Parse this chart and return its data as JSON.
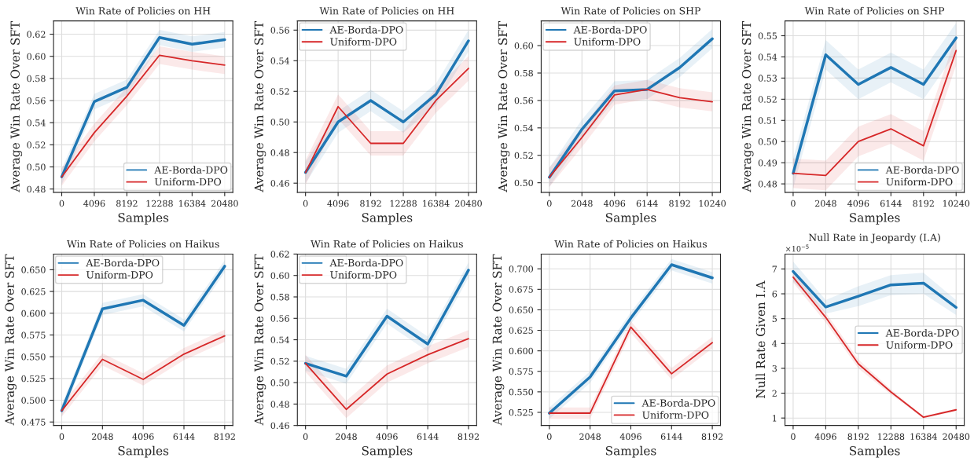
{
  "chart_data": [
    {
      "type": "line",
      "title": "Win Rate of Policies on HH",
      "xlabel": "Samples",
      "ylabel": "Average Win Rate Over SFT",
      "x": [
        0,
        4096,
        8192,
        12288,
        16384,
        20480
      ],
      "xlim": [
        -1024,
        21504
      ],
      "xticks": [
        0,
        4096,
        8192,
        12288,
        16384,
        20480
      ],
      "ylim": [
        0.477,
        0.632
      ],
      "yticks": [
        0.48,
        {
          "value": 0.5,
          "label": "0.50"
        },
        0.52,
        0.54,
        0.56,
        0.58,
        {
          "value": 0.6,
          "label": "0.60"
        },
        0.62
      ],
      "grid": true,
      "legend": "bottom right",
      "series": [
        {
          "name": "AE-Borda-DPO",
          "color": "#1f77b4",
          "values": [
            0.491,
            0.559,
            0.572,
            0.617,
            0.611,
            0.615
          ],
          "lower": [
            0.484,
            0.552,
            0.565,
            0.61,
            0.604,
            0.608
          ],
          "upper": [
            0.498,
            0.566,
            0.579,
            0.624,
            0.618,
            0.622
          ]
        },
        {
          "name": "Uniform-DPO",
          "color": "#d62728",
          "values": [
            0.491,
            0.531,
            0.564,
            0.601,
            0.596,
            0.592
          ],
          "lower": [
            0.483,
            0.523,
            0.556,
            0.593,
            0.588,
            0.584
          ],
          "upper": [
            0.499,
            0.539,
            0.572,
            0.609,
            0.604,
            0.6
          ]
        }
      ]
    },
    {
      "type": "line",
      "title": "Win Rate of Policies on HH",
      "xlabel": "Samples",
      "ylabel": "Average Win Rate Over SFT",
      "x": [
        0,
        4096,
        8192,
        12288,
        16384,
        20480
      ],
      "xlim": [
        -1024,
        21504
      ],
      "xticks": [
        0,
        4096,
        8192,
        12288,
        16384,
        20480
      ],
      "ylim": [
        0.454,
        0.566
      ],
      "yticks": [
        0.46,
        0.48,
        {
          "value": 0.5,
          "label": "0.50"
        },
        0.52,
        0.54,
        0.56
      ],
      "grid": true,
      "legend": "top left",
      "series": [
        {
          "name": "AE-Borda-DPO",
          "color": "#1f77b4",
          "values": [
            0.467,
            0.5,
            0.514,
            0.5,
            0.518,
            0.553
          ],
          "lower": [
            0.46,
            0.493,
            0.507,
            0.493,
            0.511,
            0.546
          ],
          "upper": [
            0.474,
            0.507,
            0.521,
            0.507,
            0.525,
            0.56
          ]
        },
        {
          "name": "Uniform-DPO",
          "color": "#d62728",
          "values": [
            0.467,
            0.51,
            0.486,
            0.486,
            0.514,
            0.535
          ],
          "lower": [
            0.459,
            0.502,
            0.478,
            0.478,
            0.506,
            0.527
          ],
          "upper": [
            0.475,
            0.518,
            0.494,
            0.494,
            0.522,
            0.543
          ]
        }
      ]
    },
    {
      "type": "line",
      "title": "Win Rate of Policies on SHP",
      "xlabel": "Samples",
      "ylabel": "Average Win Rate Over SFT",
      "x": [
        0,
        2048,
        4096,
        6144,
        8192,
        10240
      ],
      "xlim": [
        -512,
        10752
      ],
      "xticks": [
        0,
        2048,
        4096,
        6144,
        8192,
        10240
      ],
      "ylim": [
        0.493,
        0.618
      ],
      "yticks": [
        {
          "value": 0.5,
          "label": "0.50"
        },
        0.52,
        0.54,
        0.56,
        0.58,
        {
          "value": 0.6,
          "label": "0.60"
        }
      ],
      "grid": true,
      "legend": "top left",
      "series": [
        {
          "name": "AE-Borda-DPO",
          "color": "#1f77b4",
          "values": [
            0.504,
            0.539,
            0.567,
            0.568,
            0.584,
            0.605
          ],
          "lower": [
            0.497,
            0.532,
            0.56,
            0.561,
            0.577,
            0.598
          ],
          "upper": [
            0.511,
            0.546,
            0.574,
            0.575,
            0.591,
            0.612
          ]
        },
        {
          "name": "Uniform-DPO",
          "color": "#d62728",
          "values": [
            0.504,
            0.533,
            0.564,
            0.568,
            0.562,
            0.559
          ],
          "lower": [
            0.497,
            0.526,
            0.557,
            0.561,
            0.555,
            0.552
          ],
          "upper": [
            0.511,
            0.54,
            0.571,
            0.575,
            0.569,
            0.566
          ]
        }
      ]
    },
    {
      "type": "line",
      "title": "Win Rate of Policies on SHP",
      "xlabel": "Samples",
      "ylabel": "Average Win Rate Over SFT",
      "x": [
        0,
        2048,
        4096,
        6144,
        8192,
        10240
      ],
      "xlim": [
        -512,
        10752
      ],
      "xticks": [
        0,
        2048,
        4096,
        6144,
        8192,
        10240
      ],
      "ylim": [
        0.476,
        0.557
      ],
      "yticks": [
        0.48,
        0.49,
        {
          "value": 0.5,
          "label": "0.50"
        },
        0.51,
        0.52,
        0.53,
        0.54,
        0.55
      ],
      "grid": true,
      "legend": "bottom right",
      "series": [
        {
          "name": "AE-Borda-DPO",
          "color": "#1f77b4",
          "values": [
            0.485,
            0.541,
            0.527,
            0.535,
            0.527,
            0.549
          ],
          "lower": [
            0.478,
            0.534,
            0.52,
            0.528,
            0.52,
            0.542
          ],
          "upper": [
            0.492,
            0.548,
            0.534,
            0.542,
            0.534,
            0.556
          ]
        },
        {
          "name": "Uniform-DPO",
          "color": "#d62728",
          "values": [
            0.485,
            0.484,
            0.5,
            0.506,
            0.498,
            0.543
          ],
          "lower": [
            0.478,
            0.477,
            0.493,
            0.499,
            0.491,
            0.536
          ],
          "upper": [
            0.492,
            0.491,
            0.507,
            0.513,
            0.505,
            0.55
          ]
        }
      ]
    },
    {
      "type": "line",
      "title": "Win Rate of Policies on Haikus",
      "xlabel": "Samples",
      "ylabel": "Average Win Rate Over SFT",
      "x": [
        0,
        2048,
        4096,
        6144,
        8192
      ],
      "xlim": [
        -409.6,
        8601.6
      ],
      "xticks": [
        0,
        2048,
        4096,
        6144,
        8192
      ],
      "ylim": [
        0.471,
        0.668
      ],
      "yticks": [
        0.475,
        {
          "value": 0.5,
          "label": "0.500"
        },
        0.525,
        {
          "value": 0.55,
          "label": "0.550"
        },
        0.575,
        {
          "value": 0.6,
          "label": "0.600"
        },
        0.625,
        {
          "value": 0.65,
          "label": "0.650"
        }
      ],
      "grid": true,
      "legend": "top left",
      "series": [
        {
          "name": "AE-Borda-DPO",
          "color": "#1f77b4",
          "values": [
            0.488,
            0.605,
            0.615,
            0.586,
            0.654
          ],
          "lower": [
            0.481,
            0.598,
            0.608,
            0.579,
            0.647
          ],
          "upper": [
            0.495,
            0.612,
            0.622,
            0.593,
            0.661
          ]
        },
        {
          "name": "Uniform-DPO",
          "color": "#d62728",
          "values": [
            0.488,
            0.547,
            0.524,
            0.553,
            0.574
          ],
          "lower": [
            0.481,
            0.54,
            0.517,
            0.546,
            0.567
          ],
          "upper": [
            0.495,
            0.554,
            0.531,
            0.56,
            0.581
          ]
        }
      ]
    },
    {
      "type": "line",
      "title": "Win Rate of Policies on Haikus",
      "xlabel": "Samples",
      "ylabel": "Average Win Rate Over SFT",
      "x": [
        0,
        2048,
        4096,
        6144,
        8192
      ],
      "xlim": [
        -409.6,
        8601.6
      ],
      "xticks": [
        0,
        2048,
        4096,
        6144,
        8192
      ],
      "ylim": [
        0.46,
        0.62
      ],
      "yticks": [
        0.46,
        0.48,
        {
          "value": 0.5,
          "label": "0.50"
        },
        0.52,
        0.54,
        0.56,
        0.58,
        {
          "value": 0.6,
          "label": "0.60"
        },
        0.62
      ],
      "grid": true,
      "legend": "top left",
      "series": [
        {
          "name": "AE-Borda-DPO",
          "color": "#1f77b4",
          "values": [
            0.518,
            0.506,
            0.562,
            0.536,
            0.605
          ],
          "lower": [
            0.511,
            0.499,
            0.555,
            0.529,
            0.598
          ],
          "upper": [
            0.525,
            0.513,
            0.569,
            0.543,
            0.612
          ]
        },
        {
          "name": "Uniform-DPO",
          "color": "#d62728",
          "values": [
            0.518,
            0.475,
            0.508,
            0.526,
            0.541
          ],
          "lower": [
            0.51,
            0.467,
            0.5,
            0.518,
            0.533
          ],
          "upper": [
            0.526,
            0.483,
            0.516,
            0.534,
            0.549
          ]
        }
      ]
    },
    {
      "type": "line",
      "title": "Win Rate of Policies on Haikus",
      "xlabel": "Samples",
      "ylabel": "Average Win Rate Over SFT",
      "x": [
        0,
        2048,
        4096,
        6144,
        8192
      ],
      "xlim": [
        -409.6,
        8601.6
      ],
      "xticks": [
        0,
        2048,
        4096,
        6144,
        8192
      ],
      "ylim": [
        0.509,
        0.718
      ],
      "yticks": [
        0.525,
        {
          "value": 0.55,
          "label": "0.550"
        },
        0.575,
        {
          "value": 0.6,
          "label": "0.600"
        },
        0.625,
        {
          "value": 0.65,
          "label": "0.650"
        },
        0.675,
        {
          "value": 0.7,
          "label": "0.700"
        }
      ],
      "grid": true,
      "legend": "bottom right",
      "series": [
        {
          "name": "AE-Borda-DPO",
          "color": "#1f77b4",
          "values": [
            0.524,
            0.568,
            0.64,
            0.705,
            0.689
          ],
          "lower": [
            0.517,
            0.561,
            0.633,
            0.698,
            0.682
          ],
          "upper": [
            0.531,
            0.575,
            0.647,
            0.712,
            0.696
          ]
        },
        {
          "name": "Uniform-DPO",
          "color": "#d62728",
          "values": [
            0.524,
            0.524,
            0.629,
            0.572,
            0.61
          ],
          "lower": [
            0.517,
            0.517,
            0.622,
            0.565,
            0.603
          ],
          "upper": [
            0.531,
            0.531,
            0.636,
            0.579,
            0.617
          ]
        }
      ]
    },
    {
      "type": "line",
      "title": "Null Rate in Jeopardy (I.A)",
      "xlabel": "Samples",
      "ylabel": "Null Rate Given I.A",
      "annotations": [
        "×10$^{−5}$"
      ],
      "x": [
        0,
        4096,
        8192,
        12288,
        16384,
        20480
      ],
      "xlim": [
        -1024,
        21504
      ],
      "xticks": [
        0,
        4096,
        8192,
        12288,
        16384,
        20480
      ],
      "ylim": [
        0.7,
        7.6
      ],
      "yticks": [
        1,
        2,
        3,
        4,
        5,
        6,
        7
      ],
      "grid": true,
      "legend": "right",
      "series": [
        {
          "name": "AE-Borda-DPO",
          "color": "#1f77b4",
          "values": [
            6.9,
            5.47,
            5.9,
            6.36,
            6.43,
            5.45
          ],
          "lower": [
            6.5,
            5.2,
            5.5,
            5.95,
            6.0,
            5.15
          ],
          "upper": [
            7.3,
            5.75,
            6.3,
            6.75,
            6.85,
            5.75
          ]
        },
        {
          "name": "Uniform-DPO",
          "color": "#d62728",
          "values": [
            6.67,
            5.05,
            3.18,
            2.05,
            1.03,
            1.33
          ],
          "lower": [
            6.45,
            4.85,
            3.0,
            1.95,
            0.98,
            1.28
          ],
          "upper": [
            6.9,
            5.25,
            3.36,
            2.15,
            1.08,
            1.38
          ]
        }
      ]
    }
  ]
}
